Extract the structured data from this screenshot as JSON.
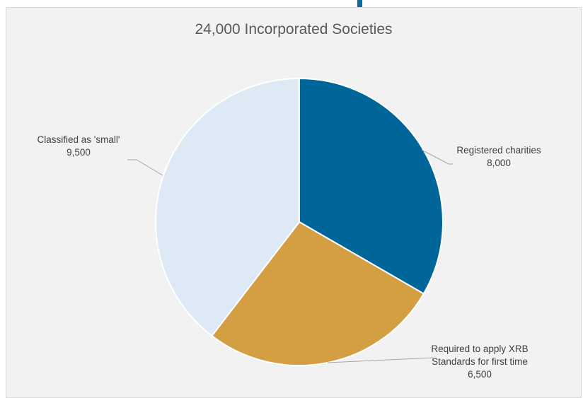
{
  "chart_data": {
    "type": "pie",
    "title": "24,000 Incorporated Societies",
    "slices": [
      {
        "label_lines": [
          "Registered charities",
          "8,000"
        ],
        "value": 8000,
        "color": "#006699"
      },
      {
        "label_lines": [
          "Required to apply XRB",
          "Standards for first time",
          "6,500"
        ],
        "value": 6500,
        "color": "#d49e43"
      },
      {
        "label_lines": [
          "Classified as 'small'",
          "9,500"
        ],
        "value": 9500,
        "color": "#dde9f5"
      }
    ],
    "start_angle_deg": 0,
    "direction": "clockwise",
    "slice_border_color": "#ffffff",
    "leader_line_color": "#a6a6a6"
  },
  "colors": {
    "panel_background": "#f2f2f2",
    "panel_border": "#d9d9d9",
    "top_accent": "#0a6ba0",
    "title_text": "#595959",
    "label_text": "#404040"
  }
}
